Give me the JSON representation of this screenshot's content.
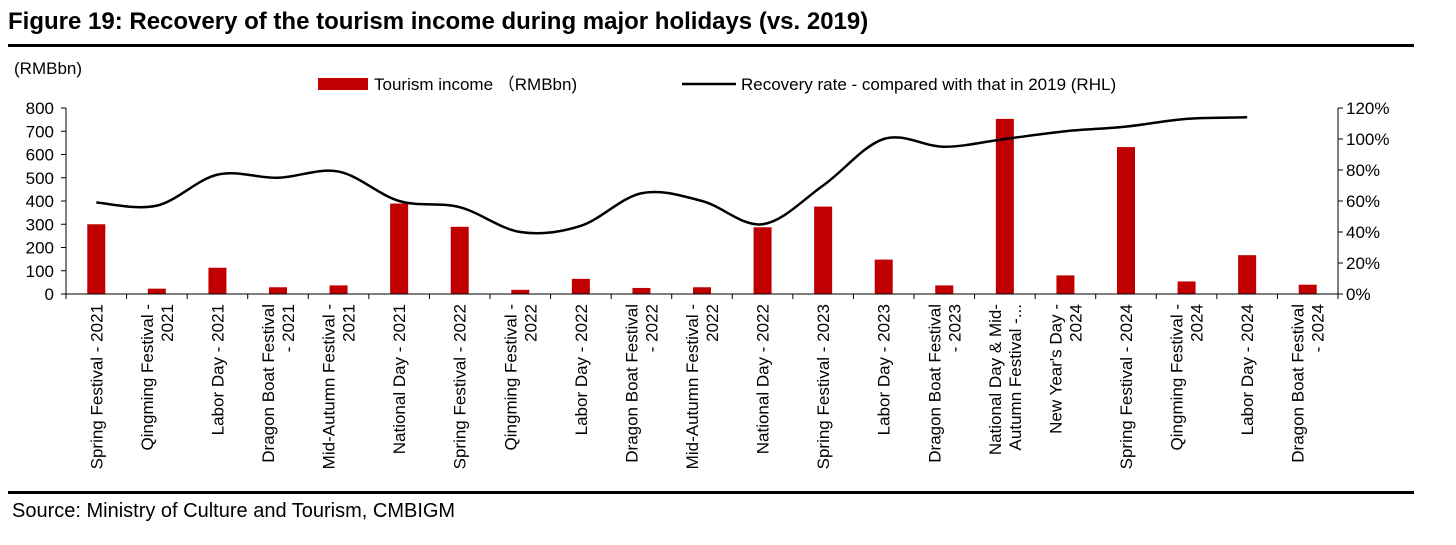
{
  "figure": {
    "title": "Figure 19: Recovery of the tourism income during major holidays (vs. 2019)",
    "source": "Source: Ministry of Culture and Tourism, CMBIGM"
  },
  "chart_data": {
    "type": "bar",
    "left_unit": "(RMBbn)",
    "categories": [
      "Spring Festival - 2021",
      "Qingming Festival - 2021",
      "Labor Day - 2021",
      "Dragon Boat Festival - 2021",
      "Mid-Autumn Festival - 2021",
      "National Day - 2021",
      "Spring Festival - 2022",
      "Qingming Festival - 2022",
      "Labor Day - 2022",
      "Dragon Boat Festival - 2022",
      "Mid-Autumn Festival - 2022",
      "National Day - 2022",
      "Spring Festival - 2023",
      "Labor Day - 2023",
      "Dragon Boat Festival - 2023",
      "National Day & Mid-Autumn Festival -...",
      "New Year's Day - 2024",
      "Spring Festival - 2024",
      "Qingming Festival - 2024",
      "Labor Day - 2024",
      "Dragon Boat Festival - 2024"
    ],
    "category_lines": [
      [
        "Spring Festival - 2021"
      ],
      [
        "Qingming Festival -",
        "2021"
      ],
      [
        "Labor Day - 2021"
      ],
      [
        "Dragon Boat Festival",
        "- 2021"
      ],
      [
        "Mid-Autumn Festival -",
        "2021"
      ],
      [
        "National Day - 2021"
      ],
      [
        "Spring Festival - 2022"
      ],
      [
        "Qingming Festival -",
        "2022"
      ],
      [
        "Labor Day - 2022"
      ],
      [
        "Dragon Boat Festival",
        "- 2022"
      ],
      [
        "Mid-Autumn Festival -",
        "2022"
      ],
      [
        "National Day - 2022"
      ],
      [
        "Spring Festival - 2023"
      ],
      [
        "Labor Day - 2023"
      ],
      [
        "Dragon Boat Festival",
        "- 2023"
      ],
      [
        "National Day & Mid-",
        "Autumn Festival -..."
      ],
      [
        "New Year's Day -",
        "2024"
      ],
      [
        "Spring Festival - 2024"
      ],
      [
        "Qingming Festival -",
        "2024"
      ],
      [
        "Labor Day - 2024"
      ],
      [
        "Dragon Boat Festival",
        "- 2024"
      ]
    ],
    "series": [
      {
        "name": "Tourism income （RMBbn)",
        "type": "bar",
        "axis": "left",
        "color": "#C00000",
        "values": [
          300,
          23,
          113,
          29,
          37,
          389,
          289,
          18,
          65,
          26,
          29,
          287,
          376,
          148,
          37,
          753,
          80,
          632,
          54,
          167,
          40
        ]
      },
      {
        "name": "Recovery rate - compared with that in 2019 (RHL)",
        "type": "line",
        "axis": "right",
        "color": "#000000",
        "values": [
          59,
          57,
          77,
          75,
          79,
          60,
          56,
          40,
          44,
          65,
          60,
          45,
          70,
          100,
          95,
          100,
          105,
          108,
          113,
          114,
          null
        ]
      }
    ],
    "y_left": {
      "min": 0,
      "max": 800,
      "ticks": [
        "0",
        "100",
        "200",
        "300",
        "400",
        "500",
        "600",
        "700",
        "800"
      ]
    },
    "y_right": {
      "min": 0,
      "max": 120,
      "ticks": [
        "0%",
        "20%",
        "40%",
        "60%",
        "80%",
        "100%",
        "120%"
      ]
    },
    "grid": false,
    "legend_position": "top"
  }
}
